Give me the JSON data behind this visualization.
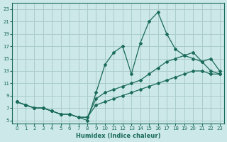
{
  "xlabel": "Humidex (Indice chaleur)",
  "bg_color": "#cce8e8",
  "grid_color": "#aacccc",
  "line_color": "#1a6b5a",
  "xlim": [
    -0.5,
    23.5
  ],
  "ylim": [
    4.5,
    24.0
  ],
  "xticks": [
    0,
    1,
    2,
    3,
    4,
    5,
    6,
    7,
    8,
    9,
    10,
    11,
    12,
    13,
    14,
    15,
    16,
    17,
    18,
    19,
    20,
    21,
    22,
    23
  ],
  "yticks": [
    5,
    7,
    9,
    11,
    13,
    15,
    17,
    19,
    21,
    23
  ],
  "curve1_x": [
    0,
    1,
    2,
    3,
    4,
    5,
    6,
    7,
    8,
    9,
    10,
    11,
    12,
    13,
    14,
    15,
    16,
    17,
    18,
    19,
    20,
    21,
    22,
    23
  ],
  "curve1_y": [
    8.0,
    7.5,
    7.0,
    7.0,
    6.5,
    6.0,
    6.0,
    5.5,
    5.0,
    9.5,
    14.0,
    16.0,
    17.0,
    12.5,
    17.5,
    21.0,
    22.5,
    19.0,
    16.5,
    15.5,
    15.0,
    14.5,
    13.0,
    12.5
  ],
  "curve2_x": [
    0,
    1,
    2,
    3,
    4,
    5,
    6,
    7,
    8,
    9,
    10,
    11,
    12,
    13,
    14,
    15,
    16,
    17,
    18,
    19,
    20,
    21,
    22,
    23
  ],
  "curve2_y": [
    8.0,
    7.5,
    7.0,
    7.0,
    6.5,
    6.0,
    6.0,
    5.5,
    5.5,
    8.5,
    9.5,
    10.0,
    10.5,
    11.0,
    11.5,
    12.5,
    13.5,
    14.5,
    15.0,
    15.5,
    16.0,
    14.5,
    15.0,
    13.0
  ],
  "curve3_x": [
    0,
    1,
    2,
    3,
    4,
    5,
    6,
    7,
    8,
    9,
    10,
    11,
    12,
    13,
    14,
    15,
    16,
    17,
    18,
    19,
    20,
    21,
    22,
    23
  ],
  "curve3_y": [
    8.0,
    7.5,
    7.0,
    7.0,
    6.5,
    6.0,
    6.0,
    5.5,
    5.5,
    7.5,
    8.0,
    8.5,
    9.0,
    9.5,
    10.0,
    10.5,
    11.0,
    11.5,
    12.0,
    12.5,
    13.0,
    13.0,
    12.5,
    12.5
  ]
}
